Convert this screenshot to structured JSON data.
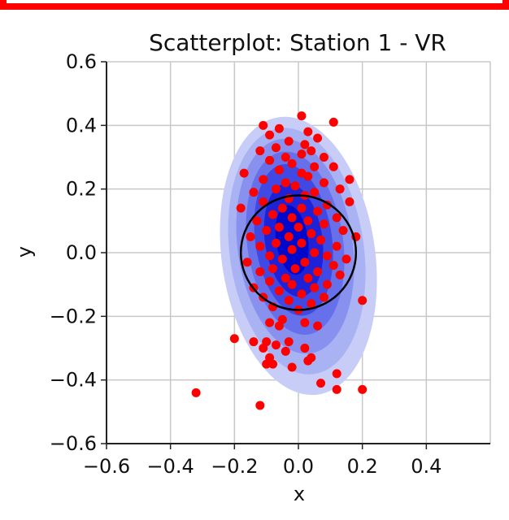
{
  "chart_data": {
    "type": "scatter",
    "title": "Scatterplot: Station 1 - VR",
    "xlabel": "x",
    "ylabel": "y",
    "xlim": [
      -0.6,
      0.6
    ],
    "ylim": [
      -0.6,
      0.6
    ],
    "x_ticks": [
      "−0.6",
      "−0.4",
      "−0.2",
      "0.0",
      "0.2",
      "0.4"
    ],
    "y_ticks": [
      "0.6",
      "0.4",
      "0.2",
      "0.0",
      "−0.2",
      "−0.4",
      "−0.6"
    ],
    "grid": true,
    "colors": {
      "points": "#ff0000",
      "density_levels": [
        "#c7cdf7",
        "#a9b2f2",
        "#8892ee",
        "#6670ea",
        "#4049e3",
        "#1d22d8",
        "#0008cc"
      ],
      "circle": "#000000",
      "frame": "#ff0000"
    },
    "density": {
      "center": [
        -0.01,
        0.02
      ],
      "levels": [
        {
          "rx": 0.24,
          "ry": 0.44,
          "cx": 0.0,
          "cy": -0.01
        },
        {
          "rx": 0.21,
          "ry": 0.39,
          "cx": -0.005,
          "cy": 0.005
        },
        {
          "rx": 0.18,
          "ry": 0.34,
          "cx": -0.01,
          "cy": 0.02
        },
        {
          "rx": 0.15,
          "ry": 0.29,
          "cx": -0.01,
          "cy": 0.03
        },
        {
          "rx": 0.12,
          "ry": 0.24,
          "cx": -0.015,
          "cy": 0.04
        },
        {
          "rx": 0.09,
          "ry": 0.18,
          "cx": -0.015,
          "cy": 0.04
        },
        {
          "rx": 0.05,
          "ry": 0.11,
          "cx": -0.02,
          "cy": 0.04
        }
      ]
    },
    "circle": {
      "cx": 0.0,
      "cy": 0.0,
      "r": 0.18
    },
    "points": [
      [
        0.01,
        0.43
      ],
      [
        0.11,
        0.41
      ],
      [
        -0.11,
        0.4
      ],
      [
        -0.06,
        0.39
      ],
      [
        -0.09,
        0.37
      ],
      [
        0.03,
        0.38
      ],
      [
        0.06,
        0.36
      ],
      [
        -0.03,
        0.35
      ],
      [
        0.02,
        0.34
      ],
      [
        -0.12,
        0.32
      ],
      [
        -0.07,
        0.33
      ],
      [
        0.04,
        0.32
      ],
      [
        -0.04,
        0.3
      ],
      [
        0.01,
        0.31
      ],
      [
        0.08,
        0.3
      ],
      [
        -0.09,
        0.29
      ],
      [
        -0.02,
        0.28
      ],
      [
        0.05,
        0.27
      ],
      [
        0.11,
        0.27
      ],
      [
        -0.17,
        0.25
      ],
      [
        -0.06,
        0.26
      ],
      [
        0.01,
        0.25
      ],
      [
        0.03,
        0.24
      ],
      [
        0.16,
        0.23
      ],
      [
        -0.11,
        0.23
      ],
      [
        -0.04,
        0.22
      ],
      [
        0.08,
        0.22
      ],
      [
        -0.01,
        0.21
      ],
      [
        0.13,
        0.2
      ],
      [
        -0.14,
        0.19
      ],
      [
        -0.07,
        0.2
      ],
      [
        0.05,
        0.19
      ],
      [
        0.02,
        0.18
      ],
      [
        -0.03,
        0.17
      ],
      [
        0.16,
        0.16
      ],
      [
        -0.11,
        0.16
      ],
      [
        0.09,
        0.15
      ],
      [
        -0.05,
        0.14
      ],
      [
        0.01,
        0.14
      ],
      [
        -0.18,
        0.14
      ],
      [
        0.06,
        0.13
      ],
      [
        -0.08,
        0.12
      ],
      [
        0.12,
        0.11
      ],
      [
        -0.02,
        0.11
      ],
      [
        0.03,
        0.1
      ],
      [
        -0.13,
        0.1
      ],
      [
        0.08,
        0.09
      ],
      [
        -0.06,
        0.08
      ],
      [
        0.0,
        0.08
      ],
      [
        0.14,
        0.07
      ],
      [
        -0.1,
        0.07
      ],
      [
        0.04,
        0.06
      ],
      [
        -0.03,
        0.05
      ],
      [
        0.18,
        0.05
      ],
      [
        -0.15,
        0.05
      ],
      [
        0.07,
        0.04
      ],
      [
        -0.07,
        0.03
      ],
      [
        0.01,
        0.03
      ],
      [
        0.12,
        0.02
      ],
      [
        -0.12,
        0.02
      ],
      [
        -0.02,
        0.01
      ],
      [
        0.05,
        0.0
      ],
      [
        -0.09,
        -0.01
      ],
      [
        0.09,
        -0.01
      ],
      [
        0.15,
        -0.02
      ],
      [
        -0.05,
        -0.02
      ],
      [
        0.02,
        -0.03
      ],
      [
        -0.16,
        -0.03
      ],
      [
        0.11,
        -0.04
      ],
      [
        -0.08,
        -0.05
      ],
      [
        -0.01,
        -0.05
      ],
      [
        0.06,
        -0.06
      ],
      [
        -0.12,
        -0.06
      ],
      [
        0.13,
        -0.07
      ],
      [
        -0.04,
        -0.08
      ],
      [
        0.03,
        -0.08
      ],
      [
        -0.09,
        -0.09
      ],
      [
        0.09,
        -0.1
      ],
      [
        -0.02,
        -0.1
      ],
      [
        -0.14,
        -0.11
      ],
      [
        0.05,
        -0.11
      ],
      [
        -0.06,
        -0.12
      ],
      [
        0.01,
        -0.13
      ],
      [
        -0.11,
        -0.14
      ],
      [
        0.08,
        -0.14
      ],
      [
        -0.03,
        -0.15
      ],
      [
        0.04,
        -0.16
      ],
      [
        0.2,
        -0.15
      ],
      [
        -0.08,
        -0.17
      ],
      [
        0.0,
        -0.18
      ],
      [
        -0.05,
        -0.21
      ],
      [
        0.02,
        -0.22
      ],
      [
        0.06,
        -0.23
      ],
      [
        -0.09,
        -0.22
      ],
      [
        -0.06,
        -0.23
      ],
      [
        -0.2,
        -0.27
      ],
      [
        -0.14,
        -0.28
      ],
      [
        -0.1,
        -0.28
      ],
      [
        -0.11,
        -0.3
      ],
      [
        -0.03,
        -0.28
      ],
      [
        -0.07,
        -0.29
      ],
      [
        0.02,
        -0.3
      ],
      [
        -0.04,
        -0.31
      ],
      [
        0.03,
        -0.34
      ],
      [
        -0.09,
        -0.33
      ],
      [
        0.04,
        -0.33
      ],
      [
        -0.02,
        -0.36
      ],
      [
        -0.08,
        -0.35
      ],
      [
        -0.1,
        -0.35
      ],
      [
        0.07,
        -0.41
      ],
      [
        0.12,
        -0.38
      ],
      [
        0.12,
        -0.43
      ],
      [
        0.2,
        -0.43
      ],
      [
        -0.32,
        -0.44
      ],
      [
        -0.12,
        -0.48
      ]
    ]
  }
}
